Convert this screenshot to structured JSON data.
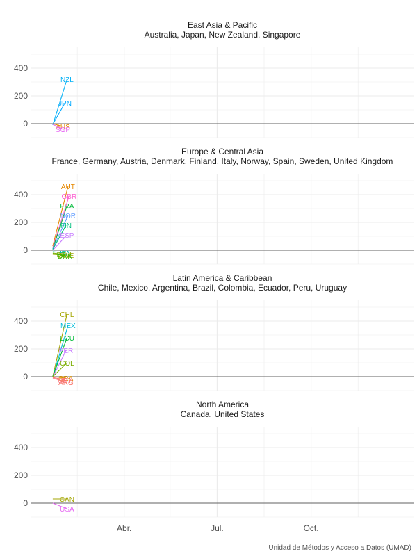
{
  "caption": "Unidad de Métodos y Acceso a Datos (UMAD)",
  "colors": {
    "grid": "#ebebeb",
    "zero_line": "#333333",
    "tick_text": "#4d4d4d",
    "title_text": "#1a1a1a"
  },
  "chart_data": {
    "type": "line",
    "x_axis": {
      "ticks": [
        "Abr.",
        "Jul.",
        "Oct."
      ],
      "domain": [
        "2020-01-01",
        "2021-01-10"
      ]
    },
    "y_axis": {
      "ticks": [
        0,
        200,
        400
      ],
      "ylim": [
        -100,
        550
      ]
    },
    "grid": true,
    "panels": [
      {
        "title": "East Asia & Pacific",
        "subtitle": "Australia, Japan, New Zealand, Singapore",
        "series": [
          {
            "label": "NZL",
            "color": "#00b0f6",
            "points": [
              [
                "2020-01-22",
                -10
              ],
              [
                "2020-02-05",
                320
              ]
            ]
          },
          {
            "label": "JPN",
            "color": "#00a9ff",
            "points": [
              [
                "2020-01-22",
                -5
              ],
              [
                "2020-02-03",
                150
              ]
            ]
          },
          {
            "label": "AUS",
            "color": "#e58700",
            "points": [
              [
                "2020-01-22",
                0
              ],
              [
                "2020-02-01",
                -20
              ]
            ]
          },
          {
            "label": "SGP",
            "color": "#e76bf3",
            "points": [
              [
                "2020-01-22",
                -5
              ],
              [
                "2020-02-01",
                -40
              ]
            ]
          }
        ]
      },
      {
        "title": "Europe & Central Asia",
        "subtitle": "France, Germany, Austria, Denmark, Finland, Italy, Norway, Spain, Sweden, United Kingdom",
        "series": [
          {
            "label": "AUT",
            "color": "#e58700",
            "points": [
              [
                "2020-01-22",
                30
              ],
              [
                "2020-02-06",
                460
              ]
            ]
          },
          {
            "label": "GBR",
            "color": "#fd61d1",
            "points": [
              [
                "2020-01-22",
                20
              ],
              [
                "2020-02-07",
                390
              ]
            ]
          },
          {
            "label": "FRA",
            "color": "#00ba38",
            "points": [
              [
                "2020-01-22",
                10
              ],
              [
                "2020-02-05",
                320
              ]
            ]
          },
          {
            "label": "NOR",
            "color": "#619cff",
            "points": [
              [
                "2020-01-22",
                10
              ],
              [
                "2020-02-06",
                250
              ]
            ]
          },
          {
            "label": "FIN",
            "color": "#00bf7d",
            "points": [
              [
                "2020-01-22",
                5
              ],
              [
                "2020-02-04",
                180
              ]
            ]
          },
          {
            "label": "ESP",
            "color": "#c77cff",
            "points": [
              [
                "2020-01-22",
                0
              ],
              [
                "2020-02-05",
                110
              ]
            ]
          },
          {
            "label": "ITA",
            "color": "#00c0af",
            "points": [
              [
                "2020-01-22",
                -10
              ],
              [
                "2020-02-03",
                -20
              ]
            ]
          },
          {
            "label": "DEU",
            "color": "#7cae00",
            "points": [
              [
                "2020-01-22",
                -20
              ],
              [
                "2020-02-02",
                -30
              ]
            ]
          },
          {
            "label": "SWE",
            "color": "#a3a500",
            "points": [
              [
                "2020-01-22",
                -30
              ],
              [
                "2020-02-04",
                -35
              ]
            ]
          },
          {
            "label": "DNK",
            "color": "#39b600",
            "points": [
              [
                "2020-01-22",
                -25
              ],
              [
                "2020-02-03",
                -40
              ]
            ]
          }
        ]
      },
      {
        "title": "Latin America & Caribbean",
        "subtitle": "Chile, Mexico, Argentina, Brazil, Colombia, Ecuador, Peru, Uruguay",
        "series": [
          {
            "label": "CHL",
            "color": "#a3a500",
            "points": [
              [
                "2020-01-22",
                0
              ],
              [
                "2020-02-05",
                450
              ]
            ]
          },
          {
            "label": "MEX",
            "color": "#00bcd8",
            "points": [
              [
                "2020-01-22",
                -5
              ],
              [
                "2020-02-06",
                370
              ]
            ]
          },
          {
            "label": "ECU",
            "color": "#00ba38",
            "points": [
              [
                "2020-01-22",
                0
              ],
              [
                "2020-02-05",
                280
              ]
            ]
          },
          {
            "label": "PER",
            "color": "#c77cff",
            "points": [
              [
                "2020-01-22",
                -5
              ],
              [
                "2020-02-04",
                190
              ]
            ]
          },
          {
            "label": "COL",
            "color": "#7cae00",
            "points": [
              [
                "2020-01-22",
                0
              ],
              [
                "2020-02-05",
                100
              ]
            ]
          },
          {
            "label": "BRA",
            "color": "#d89000",
            "points": [
              [
                "2020-01-22",
                0
              ],
              [
                "2020-02-04",
                -10
              ]
            ]
          },
          {
            "label": "URY",
            "color": "#fc717f",
            "points": [
              [
                "2020-01-22",
                -5
              ],
              [
                "2020-02-03",
                -25
              ]
            ]
          },
          {
            "label": "ARG",
            "color": "#f8766d",
            "points": [
              [
                "2020-01-22",
                -10
              ],
              [
                "2020-02-04",
                -40
              ]
            ]
          }
        ]
      },
      {
        "title": "North America",
        "subtitle": "Canada, United States",
        "series": [
          {
            "label": "CAN",
            "color": "#a3a500",
            "points": [
              [
                "2020-01-22",
                30
              ],
              [
                "2020-02-05",
                30
              ]
            ]
          },
          {
            "label": "USA",
            "color": "#e76bf3",
            "points": [
              [
                "2020-01-22",
                0
              ],
              [
                "2020-02-05",
                -40
              ]
            ]
          }
        ]
      }
    ]
  }
}
